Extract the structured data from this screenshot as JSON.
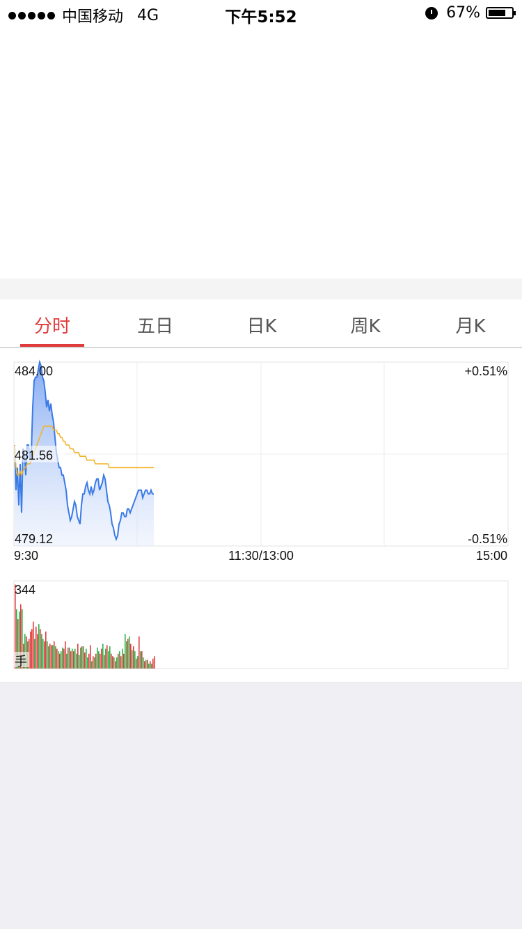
{
  "status_bar": {
    "carrier": "中国移动",
    "network": "4G",
    "time": "下午5:52",
    "battery": "67%"
  },
  "tabs": [
    {
      "label": "分时",
      "active": true
    },
    {
      "label": "五日",
      "active": false
    },
    {
      "label": "日K",
      "active": false
    },
    {
      "label": "周K",
      "active": false
    },
    {
      "label": "月K",
      "active": false
    }
  ],
  "colors": {
    "accent": "#e03c3c",
    "price_line": "#3a7ae6",
    "avg_line": "#f2b32a",
    "up": "#e03c3c",
    "down": "#2fb24a"
  },
  "chart_data": [
    {
      "type": "line",
      "y_max_label": "484.00",
      "y_mid_label": "481.56",
      "y_min_label": "479.12",
      "pct_max_label": "+0.51%",
      "pct_min_label": "-0.51%",
      "x_labels": [
        "9:30",
        "11:30/13:00",
        "15:00"
      ],
      "ylim": [
        479.12,
        484.0
      ],
      "series": [
        {
          "values": [
            481.8,
            480.6,
            481.2,
            480.2,
            481.3,
            480.0,
            481.7,
            481.6,
            481.0,
            481.8,
            481.8,
            481.4,
            481.6,
            482.8,
            483.5,
            483.6,
            483.6,
            483.8,
            484.0,
            483.9,
            483.6,
            483.5,
            483.2,
            482.8,
            483.0,
            482.7,
            482.9,
            482.6,
            482.4,
            482.0,
            481.6,
            481.4,
            481.2,
            481.2,
            481.0,
            481.0,
            480.8,
            480.6,
            480.2,
            480.0,
            479.8,
            479.9,
            480.1,
            480.3,
            480.2,
            479.9,
            479.8,
            479.7,
            480.2,
            480.5,
            480.5,
            480.7,
            480.8,
            480.6,
            480.5,
            480.7,
            480.5,
            480.6,
            480.8,
            480.9,
            480.9,
            480.6,
            480.7,
            480.8,
            481.0,
            480.9,
            480.6,
            480.3,
            480.2,
            480.0,
            479.7,
            479.6,
            479.4,
            479.3,
            479.4,
            479.7,
            479.8,
            480.0,
            480.0,
            479.9,
            479.9,
            480.1,
            480.1,
            480.0,
            480.1,
            480.2,
            480.3,
            480.4,
            480.5,
            480.6,
            480.6,
            480.6,
            480.4,
            480.5,
            480.6,
            480.6,
            480.5,
            480.5,
            480.6,
            480.5,
            480.5
          ]
        },
        {
          "values": [
            481.8,
            481.2,
            481.0,
            481.0,
            481.1,
            481.0,
            481.1,
            481.2,
            481.2,
            481.3,
            481.3,
            481.3,
            481.4,
            481.5,
            481.6,
            481.7,
            481.8,
            481.9,
            482.0,
            482.1,
            482.2,
            482.3,
            482.3,
            482.3,
            482.3,
            482.3,
            482.3,
            482.3,
            482.2,
            482.2,
            482.2,
            482.1,
            482.1,
            482.0,
            482.0,
            481.9,
            481.9,
            481.8,
            481.8,
            481.8,
            481.7,
            481.7,
            481.7,
            481.6,
            481.6,
            481.6,
            481.6,
            481.5,
            481.5,
            481.5,
            481.5,
            481.5,
            481.4,
            481.4,
            481.4,
            481.4,
            481.4,
            481.4,
            481.3,
            481.3,
            481.3,
            481.3,
            481.3,
            481.3,
            481.3,
            481.3,
            481.3,
            481.3,
            481.2,
            481.2,
            481.2,
            481.2,
            481.2,
            481.2,
            481.2,
            481.2,
            481.2,
            481.2,
            481.2,
            481.2,
            481.2,
            481.2,
            481.2,
            481.2,
            481.2,
            481.2,
            481.2,
            481.2,
            481.2,
            481.2,
            481.2,
            481.2,
            481.2,
            481.2,
            481.2,
            481.2,
            481.2,
            481.2,
            481.2,
            481.2,
            481.2
          ]
        }
      ]
    },
    {
      "type": "bar",
      "max_label": "344",
      "unit_label": "手",
      "ylim": [
        0,
        344
      ],
      "values": [
        340,
        240,
        200,
        230,
        260,
        240,
        100,
        140,
        130,
        110,
        120,
        150,
        160,
        190,
        120,
        170,
        140,
        180,
        160,
        140,
        120,
        110,
        150,
        110,
        90,
        100,
        95,
        95,
        110,
        90,
        80,
        70,
        60,
        70,
        85,
        80,
        110,
        60,
        85,
        85,
        70,
        80,
        70,
        80,
        60,
        100,
        55,
        85,
        90,
        90,
        65,
        80,
        45,
        60,
        95,
        30,
        50,
        45,
        60,
        85,
        70,
        60,
        80,
        100,
        55,
        80,
        95,
        70,
        90,
        60,
        50,
        45,
        30,
        45,
        60,
        70,
        50,
        80,
        60,
        140,
        110,
        120,
        130,
        100,
        75,
        90,
        70,
        40,
        50,
        130,
        70,
        70,
        45,
        30,
        35,
        35,
        20,
        30,
        20,
        40,
        50
      ],
      "colors": [
        "up",
        "down",
        "up",
        "down",
        "up",
        "down",
        "up",
        "down",
        "up",
        "down",
        "up",
        "up",
        "up",
        "up",
        "down",
        "up",
        "up",
        "down",
        "up",
        "down",
        "down",
        "up",
        "up",
        "down",
        "down",
        "up",
        "up",
        "down",
        "up",
        "down",
        "up",
        "down",
        "up",
        "down",
        "down",
        "up",
        "up",
        "down",
        "up",
        "down",
        "up",
        "down",
        "up",
        "down",
        "down",
        "up",
        "down",
        "down",
        "up",
        "down",
        "up",
        "down",
        "down",
        "up",
        "up",
        "down",
        "up",
        "down",
        "up",
        "down",
        "down",
        "up",
        "up",
        "down",
        "up",
        "down",
        "up",
        "down",
        "down",
        "up",
        "up",
        "down",
        "up",
        "down",
        "up",
        "down",
        "up",
        "down",
        "up",
        "down",
        "down",
        "up",
        "down",
        "up",
        "down",
        "up",
        "down",
        "up",
        "down",
        "up",
        "down",
        "up",
        "down",
        "up",
        "down",
        "up",
        "down",
        "up",
        "down",
        "up",
        "up"
      ]
    }
  ]
}
